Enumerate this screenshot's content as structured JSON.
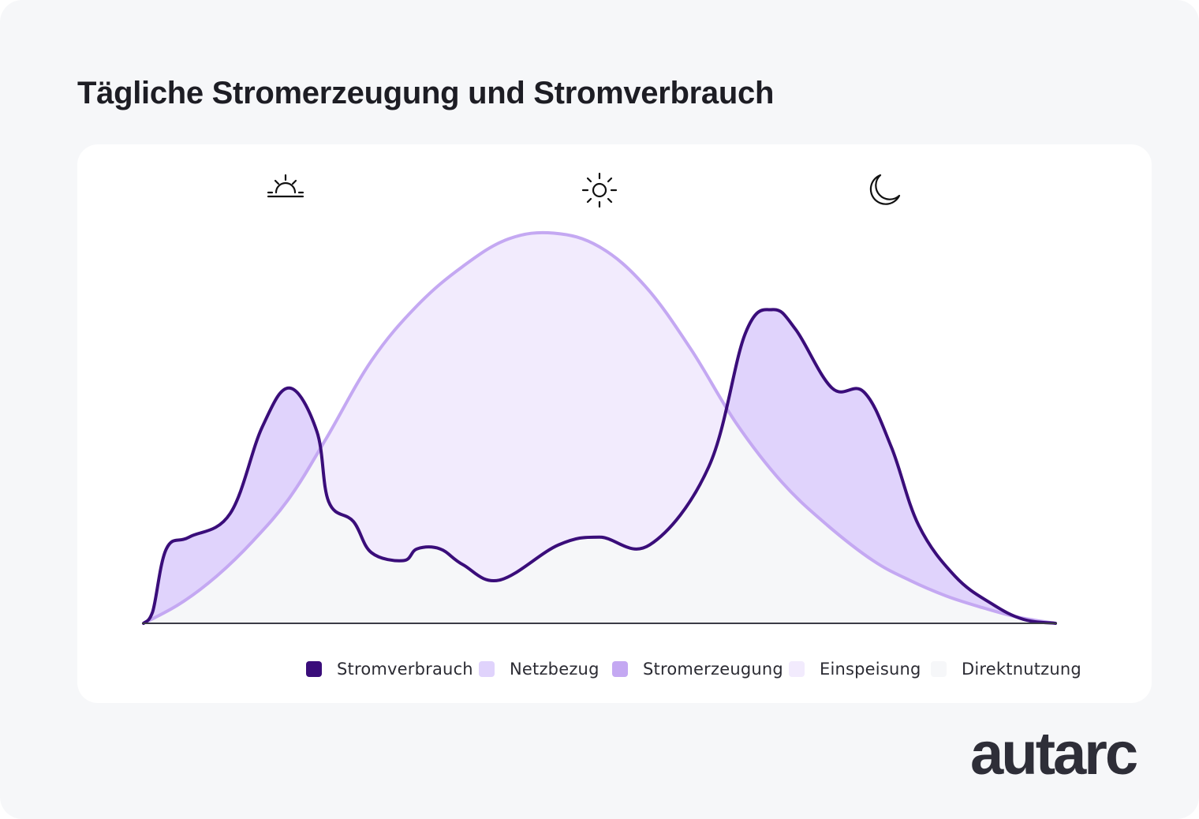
{
  "title": "Tägliche Stromerzeugung und Stromverbrauch",
  "brand": "autarc",
  "colors": {
    "stromverbrauch": "#3a0d7a",
    "stromerzeugung": "#c4a8f2",
    "netzbezug": "#e0d3fc",
    "einspeisung": "#f2ebfd",
    "direktnutzung": "#f6f7f9",
    "axis": "#3c3c46"
  },
  "chart_data": {
    "type": "area",
    "icons": [
      "sunrise-icon",
      "sun-icon",
      "moon-icon"
    ],
    "legend": [
      {
        "key": "stromverbrauch",
        "label": "Stromverbrauch",
        "color": "#3a0d7a"
      },
      {
        "key": "netzbezug",
        "label": "Netzbezug",
        "color": "#e0d3fc"
      },
      {
        "key": "stromerzeugung",
        "label": "Stromerzeugung",
        "color": "#c4a8f2"
      },
      {
        "key": "einspeisung",
        "label": "Einspeisung",
        "color": "#f2ebfd"
      },
      {
        "key": "direktnutzung",
        "label": "Direktnutzung",
        "color": "#f6f7f9"
      }
    ],
    "xlim": [
      0,
      100
    ],
    "ylim": [
      0,
      100
    ],
    "series": [
      {
        "key": "stromerzeugung",
        "x": [
          0,
          4,
          8,
          12,
          16,
          20,
          25,
          30,
          35,
          40,
          45,
          50,
          55,
          60,
          65,
          70,
          75,
          80,
          84,
          88,
          92,
          96,
          100
        ],
        "y": [
          0,
          5,
          12,
          21,
          32,
          47,
          67,
          81,
          91,
          98,
          99.5,
          96,
          86,
          70,
          51,
          36,
          25,
          16,
          11,
          7,
          4,
          1.5,
          0
        ]
      },
      {
        "key": "stromverbrauch",
        "x": [
          0,
          1,
          2.5,
          5,
          9.5,
          13,
          16,
          19,
          20.3,
          23,
          25,
          28.5,
          30,
          32.5,
          35,
          39,
          45.5,
          50,
          55.5,
          62,
          66,
          69,
          71.5,
          75.5,
          79,
          82,
          85,
          89,
          93,
          96.5,
          100
        ],
        "y": [
          0,
          3,
          19,
          22,
          28,
          50,
          60,
          49,
          31,
          26,
          18,
          16,
          19,
          19,
          15,
          11,
          20,
          22,
          20,
          40,
          74,
          80,
          75,
          60,
          59,
          45,
          25,
          12,
          5,
          1,
          0
        ]
      }
    ]
  }
}
